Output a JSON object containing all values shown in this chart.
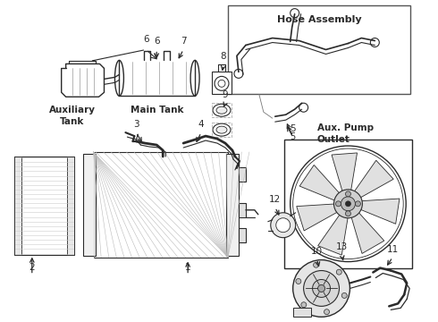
{
  "bg_color": "#ffffff",
  "line_color": "#2a2a2a",
  "hose_box_label": "Hose Assembly",
  "aux_pump_label": "Aux. Pump\nOutlet",
  "aux_tank_label": "Auxiliary\nTank",
  "main_tank_label": "Main Tank",
  "part_numbers": [
    "1",
    "2",
    "3",
    "4",
    "5",
    "6",
    "7",
    "8",
    "9",
    "10",
    "11",
    "12",
    "13"
  ],
  "fig_w": 4.9,
  "fig_h": 3.6,
  "dpi": 100
}
